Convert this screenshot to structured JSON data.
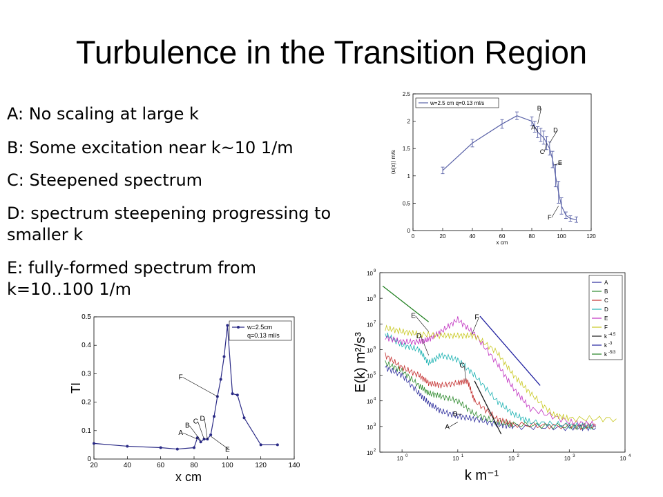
{
  "slide": {
    "title": "Turbulence in the Transition Region",
    "bullets": [
      "A: No scaling at large k",
      "B: Some excitation near k~10 1/m",
      "C: Steepened spectrum",
      "D: spectrum steepening progressing to smaller k",
      "E: fully-formed spectrum from k=10..100 1/m"
    ]
  },
  "chart_data": [
    {
      "type": "line",
      "xlabel": "x cm",
      "ylabel": "⟨u(x)⟩ m/s",
      "xlim": [
        0,
        120
      ],
      "ylim": [
        0,
        2.5
      ],
      "xticks": [
        0,
        20,
        40,
        60,
        80,
        100,
        120
      ],
      "yticks": [
        0,
        0.5,
        1,
        1.5,
        2,
        2.5
      ],
      "legend": {
        "position": "top-left",
        "entries": [
          "w=2.5 cm q=0.13 ml/s"
        ]
      },
      "color": "#5b63a8",
      "series": [
        {
          "name": "w=2.5 cm q=0.13 ml/s",
          "x": [
            20,
            40,
            60,
            70,
            80,
            82,
            84,
            86,
            88,
            90,
            92,
            94,
            96,
            98,
            100,
            103,
            106,
            110
          ],
          "y": [
            1.1,
            1.6,
            1.95,
            2.1,
            2.0,
            1.9,
            1.8,
            1.75,
            1.7,
            1.6,
            1.5,
            1.3,
            1.0,
            0.7,
            0.45,
            0.28,
            0.22,
            0.2
          ],
          "err": [
            0.06,
            0.07,
            0.08,
            0.07,
            0.08,
            0.1,
            0.1,
            0.12,
            0.12,
            0.12,
            0.12,
            0.15,
            0.2,
            0.2,
            0.15,
            0.06,
            0.05,
            0.05
          ]
        }
      ],
      "annotations": [
        {
          "text": "A",
          "x": 81,
          "y": 1.85
        },
        {
          "text": "B",
          "x": 85,
          "y": 2.2
        },
        {
          "text": "C",
          "x": 87,
          "y": 1.4
        },
        {
          "text": "D",
          "x": 96,
          "y": 1.8
        },
        {
          "text": "E",
          "x": 99,
          "y": 1.2
        },
        {
          "text": "F",
          "x": 92,
          "y": 0.2
        }
      ]
    },
    {
      "type": "line",
      "xlabel": "x cm",
      "ylabel": "TI",
      "xlim": [
        20,
        140
      ],
      "ylim": [
        0,
        0.5
      ],
      "xticks": [
        20,
        40,
        60,
        80,
        100,
        120,
        140
      ],
      "yticks": [
        0,
        0.1,
        0.2,
        0.3,
        0.4,
        0.5
      ],
      "legend": {
        "position": "top-right",
        "entries": [
          "w=2.5cm",
          "q=0.13 ml/s"
        ]
      },
      "color": "#2a2a86",
      "series": [
        {
          "name": "w=2.5cm q=0.13 ml/s",
          "x": [
            20,
            40,
            60,
            70,
            80,
            82,
            84,
            86,
            88,
            90,
            92,
            94,
            96,
            98,
            100,
            103,
            106,
            110,
            120,
            130
          ],
          "y": [
            0.055,
            0.045,
            0.04,
            0.035,
            0.04,
            0.075,
            0.06,
            0.07,
            0.07,
            0.085,
            0.15,
            0.22,
            0.28,
            0.36,
            0.47,
            0.23,
            0.225,
            0.145,
            0.05,
            0.05
          ]
        }
      ],
      "annotations": [
        {
          "text": "A",
          "x": 72,
          "y": 0.085
        },
        {
          "text": "B",
          "x": 76,
          "y": 0.11
        },
        {
          "text": "C",
          "x": 81,
          "y": 0.125
        },
        {
          "text": "D",
          "x": 85,
          "y": 0.135
        },
        {
          "text": "F",
          "x": 72,
          "y": 0.28
        },
        {
          "text": "E",
          "x": 100,
          "y": 0.025
        }
      ]
    },
    {
      "type": "line",
      "log_x": true,
      "log_y": true,
      "xlabel": "k m⁻¹",
      "ylabel": "E(k) m²/s³",
      "xlim": [
        0.4,
        10000
      ],
      "ylim": [
        100,
        1000000000
      ],
      "xticks": [
        1,
        10,
        100,
        1000,
        10000
      ],
      "yticks": [
        100,
        1000,
        10000,
        100000,
        1000000,
        10000000,
        100000000,
        1000000000
      ],
      "legend": {
        "position": "top-right"
      },
      "series": [
        {
          "name": "A",
          "color": "#2c2c9c",
          "x": [
            0.5,
            1,
            2,
            3,
            5,
            10,
            20,
            50,
            100,
            1000,
            3000
          ],
          "y": [
            200000,
            100000,
            20000,
            8000,
            4000,
            2500,
            2000,
            1200,
            1000,
            900,
            900
          ]
        },
        {
          "name": "B",
          "color": "#2e8a2e",
          "x": [
            0.5,
            1,
            2,
            3,
            5,
            10,
            20,
            50,
            100,
            1000,
            3000
          ],
          "y": [
            300000,
            150000,
            40000,
            20000,
            15000,
            10000,
            3000,
            1500,
            1200,
            1000,
            1000
          ]
        },
        {
          "name": "C",
          "color": "#c43030",
          "x": [
            0.5,
            1,
            2,
            3,
            5,
            10,
            15,
            20,
            50,
            100,
            1000,
            3000
          ],
          "y": [
            600000,
            200000,
            100000,
            50000,
            40000,
            50000,
            60000,
            10000,
            2000,
            1200,
            1000,
            1000
          ]
        },
        {
          "name": "D",
          "color": "#1fb3b3",
          "x": [
            0.5,
            1,
            2,
            3,
            5,
            10,
            20,
            50,
            100,
            200,
            1000,
            3000
          ],
          "y": [
            4000000,
            1500000,
            1000000,
            300000,
            600000,
            400000,
            100000,
            10000,
            3000,
            1500,
            1100,
            1000
          ]
        },
        {
          "name": "E",
          "color": "#c030c0",
          "x": [
            0.5,
            1,
            2,
            3,
            5,
            10,
            20,
            50,
            100,
            200,
            1000,
            3000
          ],
          "y": [
            3000000,
            2000000,
            2000000,
            2500000,
            5000000,
            15000000,
            4000000,
            300000,
            30000,
            5000,
            1500,
            1200
          ]
        },
        {
          "name": "F",
          "color": "#c8c820",
          "x": [
            0.5,
            1,
            2,
            5,
            10,
            20,
            50,
            100,
            200,
            500,
            1000,
            7000
          ],
          "y": [
            7000000,
            5000000,
            4000000,
            3500000,
            3500000,
            3500000,
            800000,
            100000,
            20000,
            3000,
            2000,
            2000
          ]
        },
        {
          "name": "k⁻⁴·⁵",
          "color": "#1a1a1a",
          "x": [
            20,
            60
          ],
          "y": [
            60000,
            500
          ]
        },
        {
          "name": "k⁻³",
          "color": "#2020a0",
          "x": [
            25,
            300
          ],
          "y": [
            20000000,
            40000
          ]
        },
        {
          "name": "k⁻⁵ᐟ³",
          "color": "#208020",
          "x": [
            0.45,
            3
          ],
          "y": [
            300000000,
            12000000
          ]
        }
      ],
      "legend_entries": [
        "A",
        "B",
        "C",
        "D",
        "E",
        "F",
        "k",
        "k",
        "k"
      ],
      "legend_sups": [
        "-4.5",
        "-3",
        "-5/3"
      ],
      "annotations": [
        {
          "text": "A",
          "x": 6.5,
          "y": 800
        },
        {
          "text": "B",
          "x": 9,
          "y": 2500
        },
        {
          "text": "C",
          "x": 12,
          "y": 200000
        },
        {
          "text": "D",
          "x": 2,
          "y": 2800000
        },
        {
          "text": "E",
          "x": 1.6,
          "y": 17000000
        },
        {
          "text": "F",
          "x": 22,
          "y": 15000000
        }
      ],
      "tick_labels_x": [
        "10",
        "10",
        "10",
        "10",
        "10"
      ],
      "tick_sups_x": [
        "0",
        "1",
        "2",
        "3",
        "4"
      ],
      "tick_labels_y": [
        "10",
        "10",
        "10",
        "10",
        "10",
        "10",
        "10",
        "10"
      ],
      "tick_sups_y": [
        "2",
        "3",
        "4",
        "5",
        "6",
        "7",
        "8",
        "9"
      ]
    }
  ]
}
